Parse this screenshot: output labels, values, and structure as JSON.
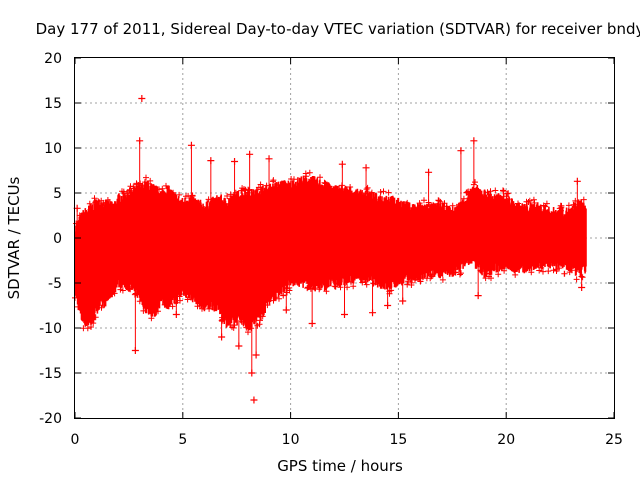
{
  "chart_data": {
    "type": "scatter",
    "title": "Day 177 of 2011, Sidereal Day-to-day VTEC variation (SDTVAR) for receiver bndy",
    "xlabel": "GPS time / hours",
    "ylabel": "SDTVAR / TECUs",
    "xlim": [
      0,
      25
    ],
    "ylim": [
      -20,
      20
    ],
    "xticks": [
      0,
      5,
      10,
      15,
      20,
      25
    ],
    "yticks": [
      -20,
      -15,
      -10,
      -5,
      0,
      5,
      10,
      15,
      20
    ],
    "xtick_labels": [
      "0",
      "5",
      "10",
      "15",
      "20",
      "25"
    ],
    "ytick_labels": [
      "-20",
      "-15",
      "-10",
      "-5",
      "0",
      "5",
      "10",
      "15",
      "20"
    ],
    "grid": true,
    "marker": "+",
    "color": "#ff0000",
    "envelope": {
      "x": [
        0.0,
        0.3,
        0.5,
        0.8,
        1.0,
        1.5,
        1.8,
        2.0,
        2.5,
        3.0,
        3.3,
        3.7,
        4.0,
        4.3,
        4.7,
        5.0,
        5.3,
        5.7,
        6.0,
        6.3,
        6.7,
        7.0,
        7.3,
        7.7,
        8.0,
        8.3,
        8.7,
        9.0,
        9.5,
        10.0,
        10.5,
        11.0,
        11.5,
        12.0,
        12.5,
        13.0,
        13.5,
        14.0,
        14.5,
        15.0,
        15.5,
        16.0,
        16.5,
        17.0,
        17.5,
        18.0,
        18.3,
        18.6,
        19.0,
        19.5,
        20.0,
        20.5,
        21.0,
        21.5,
        22.0,
        22.5,
        23.0,
        23.4,
        23.7
      ],
      "upper": [
        1.0,
        2.5,
        3.0,
        3.5,
        4.0,
        3.8,
        3.5,
        4.5,
        5.0,
        5.5,
        6.0,
        5.5,
        5.0,
        5.5,
        4.5,
        4.0,
        4.5,
        4.0,
        3.5,
        4.0,
        4.5,
        4.0,
        4.5,
        5.0,
        5.0,
        5.0,
        5.5,
        5.5,
        6.0,
        6.0,
        6.5,
        6.5,
        6.0,
        5.5,
        5.5,
        5.0,
        5.0,
        4.5,
        4.5,
        4.0,
        3.5,
        3.5,
        3.5,
        3.5,
        3.0,
        4.0,
        5.0,
        5.5,
        5.0,
        4.5,
        4.5,
        3.5,
        3.5,
        3.5,
        3.0,
        3.0,
        3.0,
        4.0,
        3.5
      ],
      "lower": [
        -6.0,
        -9.0,
        -9.5,
        -9.5,
        -8.0,
        -7.0,
        -6.0,
        -5.0,
        -5.5,
        -6.5,
        -8.0,
        -8.5,
        -7.0,
        -7.5,
        -7.0,
        -6.0,
        -6.5,
        -7.0,
        -8.0,
        -7.5,
        -8.0,
        -9.5,
        -9.5,
        -9.0,
        -10.0,
        -9.5,
        -8.5,
        -7.0,
        -6.0,
        -5.0,
        -5.0,
        -5.5,
        -5.5,
        -5.0,
        -5.0,
        -4.5,
        -4.5,
        -5.0,
        -5.5,
        -5.0,
        -4.5,
        -4.5,
        -4.0,
        -4.0,
        -4.0,
        -3.0,
        -2.5,
        -3.0,
        -4.0,
        -3.5,
        -3.0,
        -3.5,
        -3.5,
        -3.0,
        -3.0,
        -3.0,
        -3.5,
        -4.0,
        -3.5
      ]
    },
    "outliers": [
      {
        "x": 3.1,
        "y": 15.5
      },
      {
        "x": 3.0,
        "y": 10.8
      },
      {
        "x": 2.8,
        "y": -12.5
      },
      {
        "x": 5.4,
        "y": 10.3
      },
      {
        "x": 6.3,
        "y": 8.6
      },
      {
        "x": 7.4,
        "y": 8.5
      },
      {
        "x": 8.1,
        "y": 9.3
      },
      {
        "x": 9.0,
        "y": 8.8
      },
      {
        "x": 8.3,
        "y": -18.0
      },
      {
        "x": 8.2,
        "y": -15.0
      },
      {
        "x": 8.4,
        "y": -13.0
      },
      {
        "x": 7.6,
        "y": -12.0
      },
      {
        "x": 11.0,
        "y": -9.5
      },
      {
        "x": 12.5,
        "y": -8.5
      },
      {
        "x": 13.8,
        "y": -8.3
      },
      {
        "x": 14.5,
        "y": -7.5
      },
      {
        "x": 15.2,
        "y": -7.0
      },
      {
        "x": 16.4,
        "y": 7.3
      },
      {
        "x": 17.9,
        "y": 9.7
      },
      {
        "x": 18.5,
        "y": 10.8
      },
      {
        "x": 18.7,
        "y": -6.4
      },
      {
        "x": 9.8,
        "y": -8.0
      },
      {
        "x": 6.8,
        "y": -11.0
      },
      {
        "x": 12.4,
        "y": 8.2
      },
      {
        "x": 13.5,
        "y": 7.8
      },
      {
        "x": 23.3,
        "y": 6.3
      },
      {
        "x": 23.5,
        "y": -5.5
      },
      {
        "x": 0.1,
        "y": 3.3
      },
      {
        "x": 4.7,
        "y": -8.5
      }
    ]
  }
}
